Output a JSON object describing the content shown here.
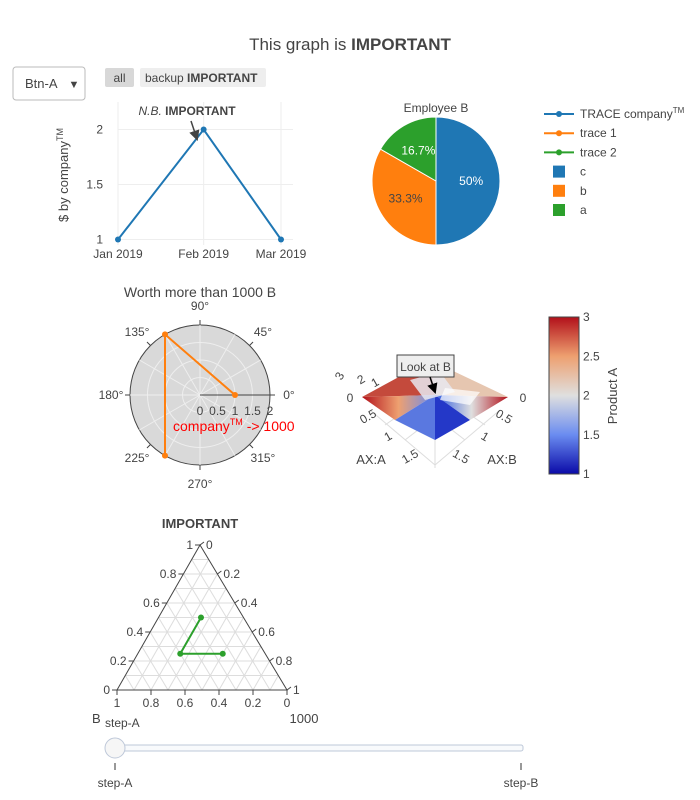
{
  "page": {
    "title_plain": "This graph is ",
    "title_bold": "IMPORTANT"
  },
  "controls": {
    "dropdown_value": "Btn-A",
    "dropdown_arrow": "▼",
    "buttons": [
      {
        "label_plain": "all",
        "label_bold": ""
      },
      {
        "label_plain": "backup ",
        "label_bold": "IMPORTANT"
      }
    ],
    "slider": {
      "current_label": "step-A",
      "steps": [
        "step-A",
        "step-B"
      ],
      "value_fraction": 0
    }
  },
  "legend": {
    "items": [
      {
        "label": "TRACE company",
        "sup": "TM",
        "type": "line",
        "color": "#1f77b4"
      },
      {
        "label": "trace 1",
        "sup": "",
        "type": "line",
        "color": "#ff7f0e"
      },
      {
        "label": "trace 2",
        "sup": "",
        "type": "line",
        "color": "#2ca02c"
      },
      {
        "label": "c",
        "sup": "",
        "type": "square",
        "color": "#1f77b4"
      },
      {
        "label": "b",
        "sup": "",
        "type": "square",
        "color": "#ff7f0e"
      },
      {
        "label": "a",
        "sup": "",
        "type": "square",
        "color": "#2ca02c"
      }
    ]
  },
  "chart_data": [
    {
      "type": "line",
      "name": "TRACE company",
      "x": [
        "2019-01-01",
        "2019-02-01",
        "2019-03-01"
      ],
      "y": [
        1,
        2,
        1
      ],
      "xtick_labels": [
        "Jan 2019",
        "Feb 2019",
        "Mar 2019"
      ],
      "ytick_values": [
        1,
        1.5,
        2
      ],
      "ylabel": "$ by company",
      "ylabel_sup": "TM",
      "ylim": [
        0.95,
        2.25
      ],
      "color": "#1f77b4",
      "annotation": {
        "prefix": "N.B. ",
        "bold": "IMPORTANT",
        "x": "2019-02-01",
        "y": 2
      },
      "grid": true
    },
    {
      "type": "pie",
      "title": "Employee B",
      "labels": [
        "c",
        "b",
        "a"
      ],
      "values": [
        50,
        33.3,
        16.7
      ],
      "text": [
        "50%",
        "33.3%",
        "16.7%"
      ],
      "colors": [
        "#1f77b4",
        "#ff7f0e",
        "#2ca02c"
      ]
    },
    {
      "type": "polar",
      "name": "trace 1",
      "title": "Worth more than 1000 B",
      "r": [
        1,
        2,
        2
      ],
      "theta": [
        0,
        120,
        240
      ],
      "radial_ticks": [
        "0",
        "0.5",
        "1",
        "1.5",
        "2"
      ],
      "angular_ticks": [
        "0°",
        "45°",
        "90°",
        "135°",
        "180°",
        "225°",
        "270°",
        "315°"
      ],
      "color": "#ff7f0e",
      "annotation": {
        "text": "company",
        "sup": "TM",
        "suffix": " -> 1000",
        "color": "#ff0000"
      }
    },
    {
      "type": "surface",
      "axis_a_title": "AX:A",
      "axis_b_title": "AX:B",
      "z_tick_labels": [
        "0",
        "1",
        "2",
        "3"
      ],
      "a_tick_labels": [
        "0.5",
        "1",
        "1.5"
      ],
      "b_tick_labels": [
        "0.5",
        "1",
        "1.5"
      ],
      "colorbar_title": "Product A",
      "colorbar_ticks": [
        1,
        1.5,
        2,
        2.5,
        3
      ],
      "colorscale": [
        "#0a0aa8",
        "#6a8cf0",
        "#dfdfdf",
        "#eea070",
        "#b2101a"
      ],
      "annotation": "Look at B"
    },
    {
      "type": "ternary",
      "name": "trace 2",
      "title": "IMPORTANT",
      "a": [
        0.5,
        0.25,
        0.25
      ],
      "b": [
        0.25,
        0.5,
        0.25
      ],
      "c": [
        0.25,
        0.25,
        0.5
      ],
      "tick_labels": [
        "0",
        "0.2",
        "0.4",
        "0.6",
        "0.8",
        "1"
      ],
      "b_axis_title": "B",
      "sum_label": "1000",
      "color": "#2ca02c"
    }
  ]
}
